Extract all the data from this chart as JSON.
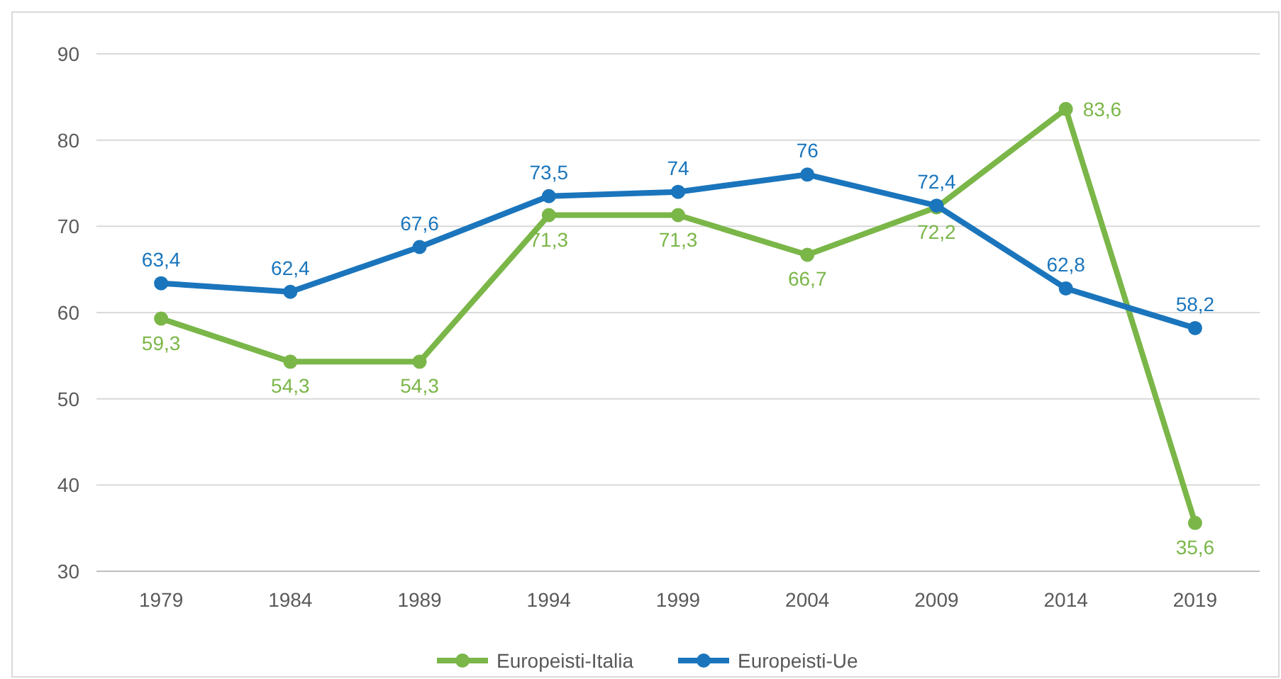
{
  "chart_data": {
    "type": "line",
    "categories": [
      "1979",
      "1984",
      "1989",
      "1994",
      "1999",
      "2004",
      "2009",
      "2014",
      "2019"
    ],
    "series": [
      {
        "name": "Europeisti-Italia",
        "color": "#7ab648",
        "values": [
          59.3,
          54.3,
          54.3,
          71.3,
          71.3,
          66.7,
          72.2,
          83.6,
          35.6
        ],
        "value_labels": [
          "59,3",
          "54,3",
          "54,3",
          "71,3",
          "71,3",
          "66,7",
          "72,2",
          "83,6",
          "35,6"
        ]
      },
      {
        "name": "Europeisti-Ue",
        "color": "#1a75bc",
        "values": [
          63.4,
          62.4,
          67.6,
          73.5,
          74,
          76,
          72.4,
          62.8,
          58.2
        ],
        "value_labels": [
          "63,4",
          "62,4",
          "67,6",
          "73,5",
          "74",
          "76",
          "72,4",
          "62,8",
          "58,2"
        ]
      }
    ],
    "ylim": [
      30,
      90
    ],
    "yticks": [
      30,
      40,
      50,
      60,
      70,
      80,
      90
    ],
    "grid": "y",
    "legend": "bottom",
    "marker": "circle",
    "line_style": "solid"
  }
}
